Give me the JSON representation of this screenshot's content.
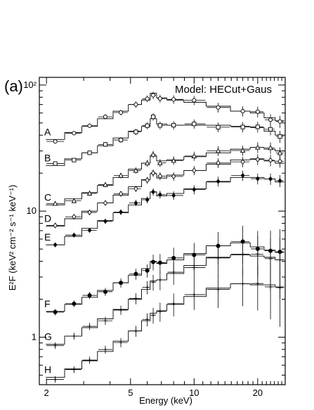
{
  "chart_data": {
    "type": "line",
    "panel_label": "(a)",
    "model_label": "Model: HECut+Gaus",
    "xlabel": "Energy (keV)",
    "ylabel": "E²F  (keV² cm⁻² s⁻¹ keV⁻¹)",
    "x_scale": "log",
    "y_scale": "log",
    "xlim": [
      1.85,
      27
    ],
    "ylim": [
      0.42,
      115
    ],
    "x_ticks": [
      {
        "value": 2,
        "label": "2"
      },
      {
        "value": 5,
        "label": "5"
      },
      {
        "value": 10,
        "label": "10"
      },
      {
        "value": 20,
        "label": "20"
      }
    ],
    "y_ticks": [
      {
        "value": 1,
        "label": "1"
      },
      {
        "value": 10,
        "label": "10"
      },
      {
        "value": 100,
        "label": "10²"
      }
    ],
    "series": [
      {
        "name": "A",
        "marker": "circle-open",
        "line_color": "#000000",
        "x": [
          2.2,
          2.7,
          3.2,
          3.8,
          4.5,
          5.3,
          6.0,
          6.4,
          6.9,
          8.0,
          10.0,
          13.0,
          17.0,
          20.0,
          23.0,
          25.5
        ],
        "y": [
          37,
          42,
          47,
          54,
          62,
          70,
          76,
          86,
          79,
          76,
          73,
          68,
          62,
          60,
          55,
          52
        ]
      },
      {
        "name": "B",
        "marker": "square-open",
        "line_color": "#000000",
        "x": [
          2.2,
          2.7,
          3.2,
          3.8,
          4.5,
          5.3,
          6.0,
          6.4,
          6.9,
          8.0,
          10.0,
          13.0,
          17.0,
          20.0,
          23.0,
          25.5
        ],
        "y": [
          23,
          26,
          29,
          33,
          38,
          43,
          47,
          54,
          49,
          48,
          48,
          48,
          47,
          46,
          43,
          40
        ]
      },
      {
        "name": "C",
        "marker": "triangle-open",
        "line_color": "#000000",
        "x": [
          2.2,
          2.7,
          3.2,
          3.8,
          4.5,
          5.3,
          6.0,
          6.4,
          6.9,
          8.0,
          10.0,
          13.0,
          17.0,
          20.0,
          23.0,
          25.5
        ],
        "y": [
          11.2,
          12.5,
          14,
          16,
          18.5,
          21.5,
          24,
          27.5,
          25,
          25.5,
          27,
          29,
          31,
          32,
          31,
          30
        ]
      },
      {
        "name": "D",
        "marker": "diamond-open",
        "line_color": "#000000",
        "x": [
          2.2,
          2.7,
          3.2,
          3.8,
          4.5,
          5.3,
          6.0,
          6.4,
          6.9,
          8.0,
          10.0,
          13.0,
          17.0,
          20.0,
          23.0,
          25.5
        ],
        "y": [
          7.6,
          8.7,
          10,
          11.6,
          13.4,
          15.6,
          17.8,
          19.8,
          18.3,
          19.3,
          21,
          23.5,
          25.5,
          26,
          25,
          24
        ]
      },
      {
        "name": "E",
        "marker": "diamond-filled",
        "line_color": "#000000",
        "x": [
          2.2,
          2.7,
          3.2,
          3.8,
          4.5,
          5.3,
          6.0,
          6.4,
          6.9,
          8.0,
          10.0,
          13.0,
          17.0,
          20.0,
          23.0,
          25.5
        ],
        "y": [
          5.4,
          6.3,
          7.3,
          8.4,
          9.7,
          11.2,
          12.6,
          14.2,
          13.2,
          13.8,
          15,
          17,
          18.5,
          18.5,
          18,
          17
        ]
      },
      {
        "name": "F",
        "marker": "circle-filled",
        "line_color": "#000000",
        "x": [
          2.2,
          2.7,
          3.2,
          3.8,
          4.5,
          5.3,
          6.0,
          6.4,
          6.9,
          8.0,
          10.0,
          13.0,
          17.0,
          20.0,
          23.0,
          25.5
        ],
        "y": [
          1.6,
          1.82,
          2.07,
          2.35,
          2.7,
          3.1,
          3.5,
          4.0,
          3.85,
          4.1,
          4.6,
          5.3,
          5.6,
          5.2,
          4.9,
          4.7
        ]
      },
      {
        "name": "G",
        "marker": "cross",
        "line_color": "#000000",
        "x": [
          2.2,
          2.7,
          3.2,
          3.8,
          4.5,
          5.3,
          6.0,
          6.4,
          6.9,
          8.0,
          10.0,
          13.0,
          17.0,
          20.0,
          23.0,
          25.5
        ],
        "y": [
          0.88,
          1.02,
          1.19,
          1.4,
          1.66,
          2.0,
          2.4,
          2.8,
          2.85,
          3.2,
          3.7,
          4.3,
          4.5,
          4.4,
          4.3,
          4.1
        ]
      },
      {
        "name": "H",
        "marker": "cross",
        "line_color": "#000000",
        "x": [
          2.2,
          2.7,
          3.2,
          3.8,
          4.5,
          5.3,
          6.0,
          6.4,
          6.9,
          8.0,
          10.0,
          13.0,
          17.0,
          20.0,
          23.0,
          25.5
        ],
        "y": [
          0.48,
          0.56,
          0.65,
          0.77,
          0.93,
          1.12,
          1.35,
          1.55,
          1.62,
          1.82,
          2.1,
          2.45,
          2.65,
          2.6,
          2.6,
          2.5
        ]
      }
    ]
  }
}
